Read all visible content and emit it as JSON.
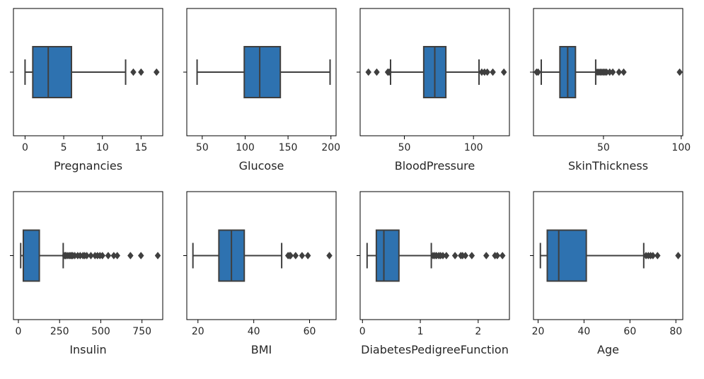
{
  "chart_data": [
    {
      "type": "box",
      "xlabel": "Pregnancies",
      "xlim": [
        -1.5,
        17.8
      ],
      "xticks": [
        0,
        5,
        10,
        15
      ],
      "box": {
        "q1": 1,
        "median": 3,
        "q3": 6,
        "whisker_low": 0,
        "whisker_high": 13
      },
      "outliers": [
        14,
        15,
        17
      ]
    },
    {
      "type": "box",
      "xlabel": "Glucose",
      "xlim": [
        32,
        206
      ],
      "xticks": [
        50,
        100,
        150,
        200
      ],
      "box": {
        "q1": 99,
        "median": 117,
        "q3": 141,
        "whisker_low": 44,
        "whisker_high": 199
      },
      "outliers": []
    },
    {
      "type": "box",
      "xlabel": "BloodPressure",
      "xlim": [
        18,
        126
      ],
      "xticks": [
        50,
        100
      ],
      "box": {
        "q1": 64,
        "median": 72,
        "q3": 80,
        "whisker_low": 40,
        "whisker_high": 104
      },
      "outliers": [
        24,
        30,
        38,
        39,
        106,
        108,
        110,
        114,
        122
      ]
    },
    {
      "type": "box",
      "xlabel": "SkinThickness",
      "xlim": [
        5,
        101
      ],
      "xticks": [
        50,
        100
      ],
      "box": {
        "q1": 22,
        "median": 27,
        "q3": 32,
        "whisker_low": 10,
        "whisker_high": 45
      },
      "outliers": [
        7,
        8,
        46,
        47,
        48,
        49,
        50,
        51,
        52,
        54,
        56,
        60,
        63,
        99
      ]
    },
    {
      "type": "box",
      "xlabel": "Insulin",
      "xlim": [
        -30,
        876
      ],
      "xticks": [
        0,
        250,
        500,
        750
      ],
      "box": {
        "q1": 30,
        "median": 30,
        "q3": 127,
        "whisker_low": 14,
        "whisker_high": 272
      },
      "outliers": [
        280,
        285,
        290,
        300,
        310,
        318,
        325,
        330,
        342,
        360,
        375,
        392,
        402,
        415,
        440,
        465,
        480,
        495,
        510,
        545,
        579,
        600,
        680,
        744,
        846
      ]
    },
    {
      "type": "box",
      "xlabel": "BMI",
      "xlim": [
        16,
        69.5
      ],
      "xticks": [
        20,
        40,
        60
      ],
      "box": {
        "q1": 27.5,
        "median": 32.0,
        "q3": 36.6,
        "whisker_low": 18.2,
        "whisker_high": 50.0
      },
      "outliers": [
        52.3,
        52.9,
        53.2,
        55.0,
        57.3,
        59.4,
        67.1
      ]
    },
    {
      "type": "box",
      "xlabel": "DiabetesPedigreeFunction",
      "xlim": [
        -0.04,
        2.54
      ],
      "xticks": [
        0,
        1,
        2
      ],
      "box": {
        "q1": 0.24,
        "median": 0.37,
        "q3": 0.63,
        "whisker_low": 0.08,
        "whisker_high": 1.19
      },
      "outliers": [
        1.22,
        1.25,
        1.28,
        1.32,
        1.35,
        1.39,
        1.45,
        1.6,
        1.7,
        1.73,
        1.78,
        1.89,
        2.14,
        2.29,
        2.33,
        2.42
      ]
    },
    {
      "type": "box",
      "xlabel": "Age",
      "xlim": [
        18,
        83
      ],
      "xticks": [
        20,
        40,
        60,
        80
      ],
      "box": {
        "q1": 24,
        "median": 29,
        "q3": 41,
        "whisker_low": 21,
        "whisker_high": 66
      },
      "outliers": [
        67,
        68,
        69,
        70,
        72,
        81
      ]
    }
  ],
  "style": {
    "box_fill": "#2e72b0",
    "line_color": "#3f3f3f",
    "frame_color": "#000000",
    "text_color": "#262626"
  }
}
